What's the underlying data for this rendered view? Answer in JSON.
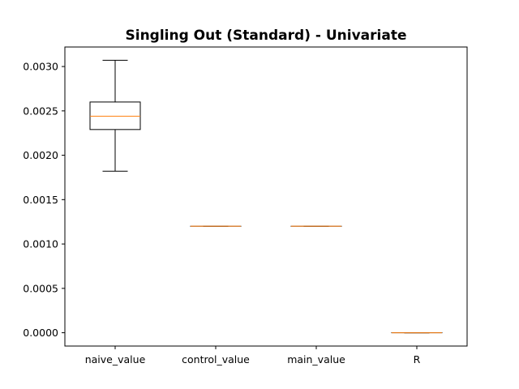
{
  "chart_data": {
    "type": "boxplot",
    "title": "Singling Out (Standard) - Univariate",
    "xlabel": "",
    "ylabel": "",
    "categories": [
      "naive_value",
      "control_value",
      "main_value",
      "R"
    ],
    "boxes": [
      {
        "label": "naive_value",
        "whisker_low": 0.00182,
        "q1": 0.00229,
        "median": 0.00244,
        "q3": 0.0026,
        "whisker_high": 0.00307
      },
      {
        "label": "control_value",
        "whisker_low": 0.0012,
        "q1": 0.0012,
        "median": 0.0012,
        "q3": 0.0012,
        "whisker_high": 0.0012
      },
      {
        "label": "main_value",
        "whisker_low": 0.0012,
        "q1": 0.0012,
        "median": 0.0012,
        "q3": 0.0012,
        "whisker_high": 0.0012
      },
      {
        "label": "R",
        "whisker_low": 0.0,
        "q1": 0.0,
        "median": 0.0,
        "q3": 0.0,
        "whisker_high": 0.0
      }
    ],
    "yticks": [
      0.0,
      0.0005,
      0.001,
      0.0015,
      0.002,
      0.0025,
      0.003
    ],
    "ytick_labels": [
      "0.0000",
      "0.0005",
      "0.0010",
      "0.0015",
      "0.0020",
      "0.0025",
      "0.0030"
    ],
    "ylim": [
      -0.00015,
      0.00322
    ],
    "grid": false,
    "box_color": "#000000",
    "median_color": "#ff7f0e"
  }
}
